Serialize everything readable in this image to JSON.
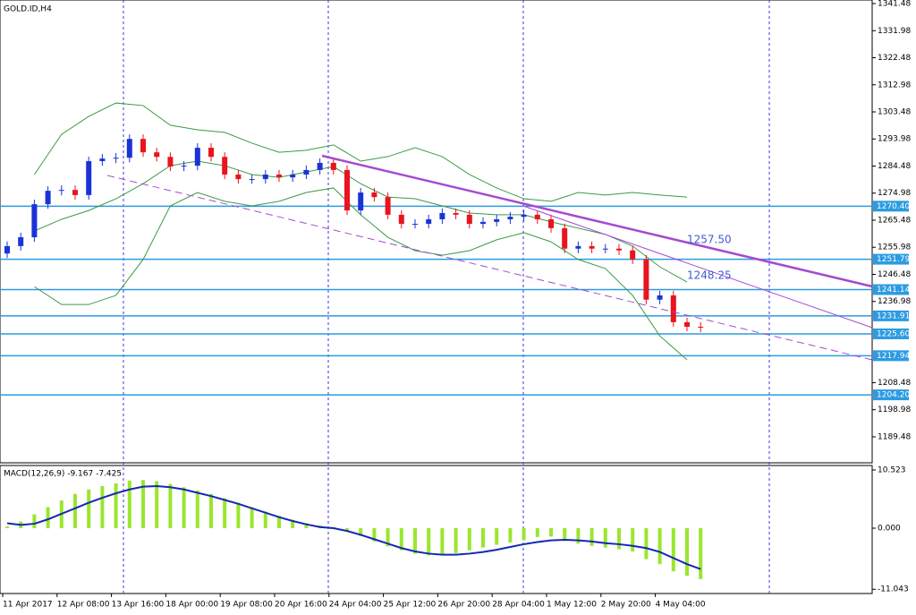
{
  "chart_data": [
    {
      "type": "candlestick",
      "title": "GOLD.ID,H4",
      "open": [
        1253.8,
        1256.4,
        1259.5,
        1271.1,
        1275.8,
        1276.1,
        1274.3,
        1286.2,
        1287.1,
        1287.4,
        1294.0,
        1289.3,
        1287.7,
        1284.3,
        1284.6,
        1290.9,
        1287.7,
        1281.5,
        1279.9,
        1279.9,
        1281.5,
        1280.5,
        1281.5,
        1283.1,
        1285.6,
        1283.1,
        1268.9,
        1275.2,
        1273.6,
        1267.4,
        1264.2,
        1264.2,
        1265.8,
        1268.0,
        1267.4,
        1264.2,
        1264.9,
        1265.8,
        1266.7,
        1267.4,
        1265.8,
        1262.7,
        1255.5,
        1256.4,
        1255.5,
        1255.5,
        1254.9,
        1251.7,
        1237.6,
        1239.1,
        1229.7,
        1228.1
      ],
      "high": [
        1258.0,
        1261.1,
        1272.7,
        1277.4,
        1277.7,
        1277.7,
        1287.8,
        1288.7,
        1289.0,
        1295.6,
        1295.6,
        1290.9,
        1289.3,
        1286.2,
        1292.5,
        1292.5,
        1289.3,
        1283.1,
        1281.5,
        1283.1,
        1283.1,
        1283.1,
        1284.7,
        1287.2,
        1287.2,
        1284.7,
        1276.8,
        1276.8,
        1275.2,
        1269.0,
        1265.8,
        1267.4,
        1269.6,
        1269.6,
        1269.0,
        1266.5,
        1267.4,
        1268.3,
        1269.0,
        1269.0,
        1267.4,
        1264.3,
        1258.0,
        1258.0,
        1257.1,
        1257.1,
        1256.5,
        1253.3,
        1240.7,
        1240.7,
        1231.3,
        1229.7
      ],
      "low": [
        1252.2,
        1254.8,
        1257.9,
        1269.5,
        1274.2,
        1272.7,
        1272.7,
        1284.6,
        1285.5,
        1285.8,
        1287.7,
        1286.1,
        1282.7,
        1282.7,
        1283.0,
        1286.1,
        1279.9,
        1278.3,
        1278.3,
        1278.3,
        1278.9,
        1278.9,
        1279.9,
        1281.5,
        1281.5,
        1267.3,
        1267.3,
        1272.0,
        1265.8,
        1262.6,
        1262.6,
        1262.6,
        1264.2,
        1265.8,
        1262.6,
        1262.6,
        1263.3,
        1264.2,
        1265.1,
        1264.2,
        1261.1,
        1253.9,
        1253.9,
        1253.9,
        1253.9,
        1253.3,
        1250.1,
        1236.0,
        1236.0,
        1228.1,
        1226.5,
        1226.2
      ],
      "close": [
        1256.4,
        1259.5,
        1271.1,
        1275.8,
        1276.1,
        1274.3,
        1286.2,
        1287.1,
        1287.4,
        1294.0,
        1289.3,
        1287.7,
        1284.3,
        1284.6,
        1290.9,
        1287.7,
        1281.5,
        1279.9,
        1279.9,
        1281.5,
        1280.5,
        1281.5,
        1283.1,
        1285.6,
        1283.1,
        1268.9,
        1275.2,
        1273.6,
        1267.4,
        1264.2,
        1264.2,
        1265.8,
        1268.0,
        1267.4,
        1264.2,
        1264.9,
        1265.8,
        1266.7,
        1267.4,
        1265.8,
        1262.7,
        1255.5,
        1256.4,
        1255.5,
        1255.5,
        1254.9,
        1251.7,
        1237.6,
        1239.1,
        1229.7,
        1228.1,
        1227.8
      ],
      "up_color": "#1a33d6",
      "down_color": "#e8141e",
      "bands": {
        "x": [
          2,
          4,
          6,
          8,
          10,
          12,
          14,
          16,
          18,
          20,
          22,
          24,
          26,
          28,
          30,
          32,
          34,
          36,
          38,
          40,
          42,
          44,
          46,
          48,
          50
        ],
        "color": "#3c9a46",
        "upper": [
          1281.5,
          1295.6,
          1301.9,
          1306.6,
          1305.7,
          1298.8,
          1297.2,
          1296.3,
          1292.5,
          1289.3,
          1290.0,
          1291.9,
          1286.2,
          1287.8,
          1290.9,
          1287.8,
          1281.5,
          1276.8,
          1273.0,
          1272.1,
          1275.2,
          1274.3,
          1275.2,
          1274.3,
          1273.6
        ],
        "middle": [
          1261.7,
          1265.8,
          1268.9,
          1273.0,
          1278.3,
          1284.6,
          1286.2,
          1284.6,
          1281.5,
          1280.5,
          1282.4,
          1284.3,
          1278.3,
          1273.6,
          1273.0,
          1270.5,
          1268.0,
          1267.4,
          1267.4,
          1264.9,
          1262.7,
          1260.5,
          1256.4,
          1249.1,
          1243.8
        ],
        "lower": [
          1242.2,
          1235.9,
          1235.9,
          1239.1,
          1251.7,
          1270.5,
          1275.2,
          1272.1,
          1270.5,
          1272.1,
          1275.2,
          1276.8,
          1267.4,
          1259.5,
          1254.8,
          1253.2,
          1254.8,
          1258.6,
          1261.1,
          1257.9,
          1251.7,
          1248.5,
          1239.1,
          1224.9,
          1216.5
        ]
      },
      "levels": [
        {
          "value": 1270.4,
          "label": "1270.40"
        },
        1251.79,
        1241.14,
        1231.91,
        {
          "value": 1225.6,
          "label": "1225.60"
        },
        1217.94,
        {
          "value": 1204.2,
          "label": "1204.20"
        }
      ],
      "level_color": "#2c9be2",
      "annotations": [
        "1257.50",
        "1248.25"
      ],
      "ylim": [
        1180.36,
        1342.74
      ],
      "yticks": [
        1341.48,
        1331.98,
        1322.48,
        1312.98,
        1303.48,
        1293.98,
        1284.48,
        1274.98,
        1265.48,
        1255.98,
        1246.48,
        1236.98,
        1208.48,
        1198.98,
        1189.48
      ],
      "xticks": [
        {
          "value": 0,
          "label": "11 Apr 2017"
        },
        {
          "value": 4,
          "label": "12 Apr 08:00"
        },
        {
          "value": 8,
          "label": "13 Apr 16:00"
        },
        {
          "value": 12,
          "label": "18 Apr 00:00"
        },
        {
          "value": 16,
          "label": "19 Apr 08:00"
        },
        {
          "value": 20,
          "label": "20 Apr 16:00"
        },
        {
          "value": 24,
          "label": "24 Apr 04:00"
        },
        {
          "value": 28,
          "label": "25 Apr 12:00"
        },
        {
          "value": 32,
          "label": "26 Apr 20:00"
        },
        {
          "value": 36,
          "label": "28 Apr 04:00"
        },
        {
          "value": 40,
          "label": "1 May 12:00"
        },
        {
          "value": 44,
          "label": "2 May 20:00"
        },
        {
          "value": 48,
          "label": "4 May 04:00"
        }
      ]
    },
    {
      "type": "macd",
      "title": "MACD(12,26,9) -9.167 -7.425",
      "histogram": [
        0.3,
        1.2,
        2.5,
        3.8,
        5.0,
        6.2,
        7.0,
        7.6,
        8.1,
        8.6,
        8.7,
        8.5,
        8.0,
        7.4,
        6.8,
        6.2,
        5.4,
        4.6,
        3.8,
        3.0,
        2.2,
        1.5,
        0.9,
        0.5,
        0.2,
        -0.6,
        -1.4,
        -2.4,
        -3.3,
        -4.0,
        -4.6,
        -4.9,
        -4.8,
        -4.5,
        -4.0,
        -3.5,
        -3.0,
        -2.6,
        -2.2,
        -1.6,
        -1.5,
        -2.3,
        -2.8,
        -3.2,
        -3.5,
        -3.8,
        -4.2,
        -5.6,
        -6.5,
        -7.8,
        -8.6,
        -9.2
      ],
      "signal": [
        0.9,
        0.6,
        0.8,
        1.6,
        2.6,
        3.6,
        4.6,
        5.5,
        6.3,
        7.0,
        7.5,
        7.6,
        7.4,
        7.0,
        6.4,
        5.8,
        5.1,
        4.4,
        3.6,
        2.8,
        2.0,
        1.3,
        0.7,
        0.2,
        0.0,
        -0.5,
        -1.2,
        -2.0,
        -2.8,
        -3.6,
        -4.2,
        -4.6,
        -4.8,
        -4.8,
        -4.6,
        -4.3,
        -3.9,
        -3.4,
        -2.9,
        -2.5,
        -2.2,
        -2.1,
        -2.2,
        -2.4,
        -2.7,
        -2.9,
        -3.2,
        -3.6,
        -4.3,
        -5.4,
        -6.5,
        -7.4
      ],
      "histogram_color": "#9ae62e",
      "signal_color": "#1428b4",
      "ylim": [
        -11.65,
        11.17
      ],
      "yticks": [
        10.523,
        {
          "value": 0,
          "label": "0.000"
        },
        -11.043
      ]
    }
  ]
}
